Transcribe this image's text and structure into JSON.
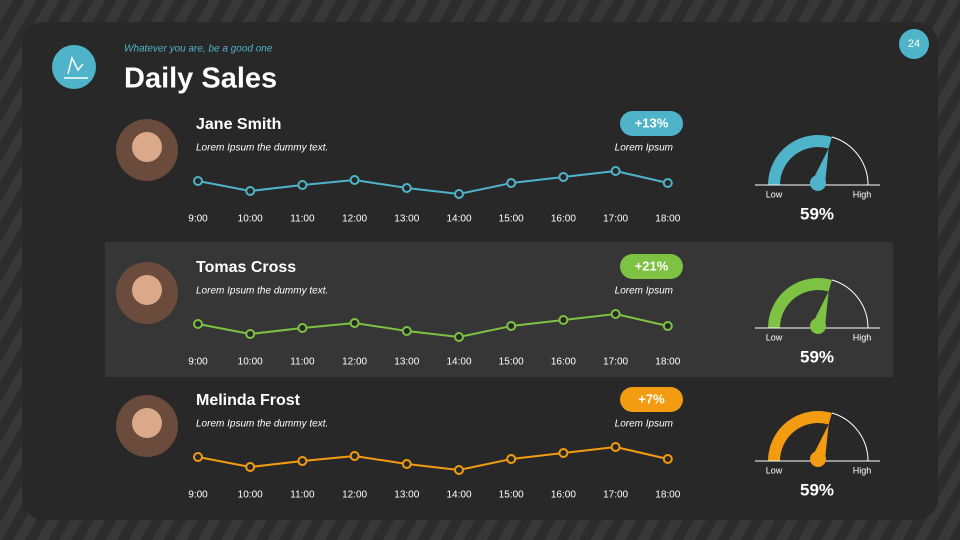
{
  "header": {
    "subtitle": "Whatever you are, be a good one",
    "title": "Daily Sales",
    "page": "24"
  },
  "chart_data": [
    {
      "type": "line",
      "name": "Jane Smith",
      "caption": "Lorem Ipsum the dummy  text.",
      "note": "Lorem Ipsum",
      "badge": {
        "value": 13,
        "label": "+13%"
      },
      "color": "#4fb3c9",
      "categories": [
        "9:00",
        "10:00",
        "11:00",
        "12:00",
        "13:00",
        "14:00",
        "15:00",
        "16:00",
        "17:00",
        "18:00"
      ],
      "values": [
        19,
        9,
        15,
        20,
        12,
        6,
        17,
        23,
        29,
        17
      ],
      "ylim": [
        0,
        35
      ],
      "gauge": {
        "value": 59,
        "label": "59%",
        "lim": [
          0,
          100
        ],
        "min_label": "Low",
        "max_label": "High"
      }
    },
    {
      "type": "line",
      "name": "Tomas Cross",
      "caption": "Lorem Ipsum the dummy  text.",
      "note": "Lorem Ipsum",
      "badge": {
        "value": 21,
        "label": "+21%"
      },
      "color": "#7dc242",
      "categories": [
        "9:00",
        "10:00",
        "11:00",
        "12:00",
        "13:00",
        "14:00",
        "15:00",
        "16:00",
        "17:00",
        "18:00"
      ],
      "values": [
        19,
        9,
        15,
        20,
        12,
        6,
        17,
        23,
        29,
        17
      ],
      "ylim": [
        0,
        35
      ],
      "gauge": {
        "value": 59,
        "label": "59%",
        "lim": [
          0,
          100
        ],
        "min_label": "Low",
        "max_label": "High"
      }
    },
    {
      "type": "line",
      "name": "Melinda Frost",
      "caption": "Lorem Ipsum the dummy  text.",
      "note": "Lorem Ipsum",
      "badge": {
        "value": 7,
        "label": "+7%"
      },
      "color": "#f39c12",
      "categories": [
        "9:00",
        "10:00",
        "11:00",
        "12:00",
        "13:00",
        "14:00",
        "15:00",
        "16:00",
        "17:00",
        "18:00"
      ],
      "values": [
        19,
        9,
        15,
        20,
        12,
        6,
        17,
        23,
        29,
        17
      ],
      "ylim": [
        0,
        35
      ],
      "gauge": {
        "value": 59,
        "label": "59%",
        "lim": [
          0,
          100
        ],
        "min_label": "Low",
        "max_label": "High"
      }
    }
  ]
}
